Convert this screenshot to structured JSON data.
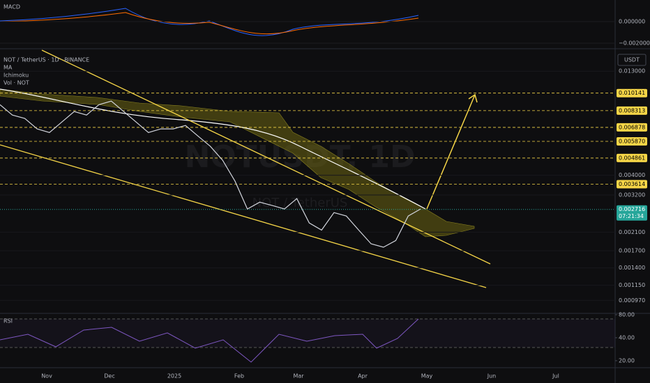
{
  "header": {
    "symbol": "NOT / TetherUS · 1D · BINANCE",
    "indicators": [
      "MA",
      "Ichimoku",
      "Vol · NOT"
    ],
    "watermark": "NOTUSDT, 1D",
    "watermark_sub": "NOT / TetherUS"
  },
  "macd": {
    "title": "MACD",
    "ylim": [
      -0.00226,
      0.002
    ],
    "yticks": [
      {
        "value": 0,
        "label": "0.000000"
      },
      {
        "value": -0.002,
        "label": "−0.002000"
      }
    ]
  },
  "chart_data": {
    "type": "line",
    "color": "#d1d4dc",
    "yscale": "log",
    "unit": "USDT",
    "ylim": [
      0.00085,
      0.0165
    ],
    "yticks": [
      {
        "value": 0.013,
        "label": "0.013000"
      },
      {
        "value": 0.004,
        "label": "0.004000"
      },
      {
        "value": 0.0032,
        "label": "0.003200"
      },
      {
        "value": 0.0021,
        "label": "0.002100"
      },
      {
        "value": 0.0017,
        "label": "0.001700"
      },
      {
        "value": 0.0014,
        "label": "0.001400"
      },
      {
        "value": 0.00115,
        "label": "0.001150"
      },
      {
        "value": 0.00097,
        "label": "0.000970"
      }
    ],
    "levels": [
      {
        "value": 0.010141,
        "label": "0.010141"
      },
      {
        "value": 0.008313,
        "label": "0.008313"
      },
      {
        "value": 0.006878,
        "label": "0.006878"
      },
      {
        "value": 0.00587,
        "label": "0.005870"
      },
      {
        "value": 0.004861,
        "label": "0.004861"
      },
      {
        "value": 0.003614,
        "label": "0.003614"
      }
    ],
    "last_price": {
      "value": 0.002716,
      "label": "0.002716"
    },
    "countdown": "07:21:34",
    "values": [
      0.0089,
      0.00791,
      0.00761,
      0.00676,
      0.00649,
      0.00731,
      0.00823,
      0.00791,
      0.0089,
      0.00926,
      0.00823,
      0.00731,
      0.00649,
      0.00676,
      0.00676,
      0.00703,
      0.00624,
      0.00555,
      0.00474,
      0.00374,
      0.00273,
      0.00295,
      0.00284,
      0.00273,
      0.00307,
      0.00233,
      0.00215,
      0.00262,
      0.00252,
      0.00215,
      0.00184,
      0.00177,
      0.00191,
      0.00252,
      0.00273
    ],
    "months": [
      "Nov",
      "Dec",
      "2025",
      "Feb",
      "Mar",
      "Apr",
      "May",
      "Jun",
      "Jul"
    ]
  },
  "rsi": {
    "title": "RSI",
    "yscale": "log",
    "ylim": [
      16.2,
      83.4
    ],
    "yticks": [
      {
        "value": 80,
        "label": "80.00"
      },
      {
        "value": 40,
        "label": "40.00"
      },
      {
        "value": 20,
        "label": "20.00"
      }
    ]
  }
}
